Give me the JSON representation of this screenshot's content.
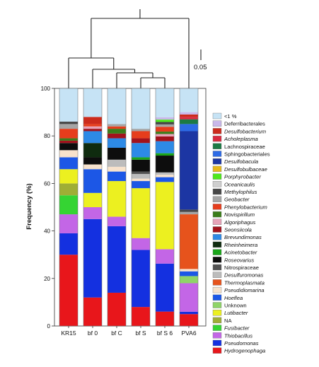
{
  "chart_data": {
    "type": "bar",
    "stacked": true,
    "ylabel": "Frequency (%)",
    "ylim": [
      0,
      100
    ],
    "yticks": [
      0,
      20,
      40,
      60,
      80,
      100
    ],
    "categories": [
      "KR15",
      "bf 0",
      "bf C",
      "bf S",
      "bf S 6",
      "PVA6"
    ],
    "dendrogram_scale_label": "0.05",
    "series": [
      {
        "name": "Hydrogenophaga",
        "italic": true,
        "color": "#e8161b",
        "values": [
          30,
          12,
          14,
          8,
          6,
          5
        ]
      },
      {
        "name": "Pseudomonas",
        "italic": true,
        "color": "#1430e0",
        "values": [
          9,
          33,
          28,
          24,
          20,
          1
        ]
      },
      {
        "name": "Thiobacillus",
        "italic": true,
        "color": "#c366e6",
        "values": [
          8,
          5,
          4,
          5,
          6,
          12
        ]
      },
      {
        "name": "Fusibacter",
        "italic": true,
        "color": "#35d433",
        "values": [
          8,
          0,
          0,
          0,
          0,
          0
        ]
      },
      {
        "name": "NA",
        "italic": false,
        "color": "#9fae35",
        "values": [
          5,
          0,
          0,
          0,
          0,
          0
        ]
      },
      {
        "name": "Lutibacter",
        "italic": true,
        "color": "#ecf020",
        "values": [
          6,
          6,
          15,
          21,
          28,
          0
        ]
      },
      {
        "name": "Unknown",
        "italic": false,
        "color": "#8fd468",
        "values": [
          0,
          0,
          0,
          0,
          0,
          3
        ]
      },
      {
        "name": "Hoeflea",
        "italic": true,
        "color": "#1c57e6",
        "values": [
          5,
          10,
          4,
          3,
          2,
          2
        ]
      },
      {
        "name": "Pseudidiomarina",
        "italic": true,
        "color": "#f7e2cc",
        "values": [
          3,
          2,
          2,
          1,
          1,
          1
        ]
      },
      {
        "name": "Thermoplasmata",
        "italic": true,
        "color": "#e6531c",
        "values": [
          0,
          0,
          0,
          0,
          0,
          23
        ]
      },
      {
        "name": "Desulfuromonas",
        "italic": true,
        "color": "#bcbcbc",
        "values": [
          0,
          0,
          3,
          2,
          1,
          0
        ]
      },
      {
        "name": "Nitrospiraceae",
        "italic": false,
        "color": "#525252",
        "values": [
          0,
          0,
          0,
          1,
          0,
          0
        ]
      },
      {
        "name": "Roseovarius",
        "italic": true,
        "color": "#0d0d0d",
        "values": [
          3,
          3,
          5,
          5,
          7,
          0
        ]
      },
      {
        "name": "Acinetobacter",
        "italic": true,
        "color": "#1aa51a",
        "values": [
          0,
          0,
          0,
          1,
          1,
          0
        ]
      },
      {
        "name": "Rheinheimera",
        "italic": true,
        "color": "#0f2b0f",
        "values": [
          0,
          6,
          0,
          0,
          0,
          0
        ]
      },
      {
        "name": "Brevundimonas",
        "italic": true,
        "color": "#2d8ae6",
        "values": [
          0,
          5,
          4,
          6,
          5,
          0
        ]
      },
      {
        "name": "Seonsiicola",
        "italic": true,
        "color": "#a3121c",
        "values": [
          1,
          1,
          2,
          2,
          2,
          0
        ]
      },
      {
        "name": "Algoriphagus",
        "italic": true,
        "color": "#e6a3b8",
        "values": [
          0,
          1,
          0,
          0,
          1,
          0
        ]
      },
      {
        "name": "Novispirillum",
        "italic": true,
        "color": "#3a7d1a",
        "values": [
          1,
          0,
          2,
          0,
          1,
          0
        ]
      },
      {
        "name": "Phenylobacterium",
        "italic": true,
        "color": "#e63d1c",
        "values": [
          4,
          1,
          1,
          3,
          2,
          0
        ]
      },
      {
        "name": "Geobacter",
        "italic": true,
        "color": "#a5a5a5",
        "values": [
          2,
          0,
          1,
          1,
          1,
          1
        ]
      },
      {
        "name": "Methylophilus",
        "italic": true,
        "color": "#474747",
        "values": [
          1,
          0,
          0,
          0,
          1,
          1
        ]
      },
      {
        "name": "Oceanicaulis",
        "italic": true,
        "color": "#cfcfcf",
        "values": [
          0,
          0,
          0,
          0,
          0,
          0
        ]
      },
      {
        "name": "Porphyrobacter",
        "italic": true,
        "color": "#4ee81c",
        "values": [
          0,
          0,
          0,
          0,
          1,
          0
        ]
      },
      {
        "name": "Desulfobulbaceae",
        "italic": true,
        "color": "#e6b81c",
        "values": [
          0,
          0,
          0,
          0,
          0,
          0
        ]
      },
      {
        "name": "Desulfobacula",
        "italic": true,
        "color": "#1c36a3",
        "values": [
          0,
          0,
          0,
          0,
          0,
          33
        ]
      },
      {
        "name": "Sphingobacteriales",
        "italic": false,
        "color": "#2d6be6",
        "values": [
          0,
          0,
          0,
          0,
          0,
          3
        ]
      },
      {
        "name": "Lachnospiraceae",
        "italic": false,
        "color": "#1c7a45",
        "values": [
          0,
          0,
          0,
          0,
          0,
          2
        ]
      },
      {
        "name": "Acholeplasma",
        "italic": true,
        "color": "#d92a3f",
        "values": [
          0,
          0,
          0,
          0,
          0,
          1
        ]
      },
      {
        "name": "Desulfobacterium",
        "italic": true,
        "color": "#cc2b1c",
        "values": [
          0,
          3,
          0,
          0,
          0,
          1
        ]
      },
      {
        "name": "Deferribacterales",
        "italic": false,
        "color": "#c9b8ea",
        "values": [
          0,
          0,
          0,
          0,
          1,
          1
        ]
      },
      {
        "name": "<1 %",
        "italic": false,
        "color": "#c6e3f5",
        "values": [
          14,
          12,
          15,
          17,
          12,
          10
        ]
      }
    ]
  }
}
